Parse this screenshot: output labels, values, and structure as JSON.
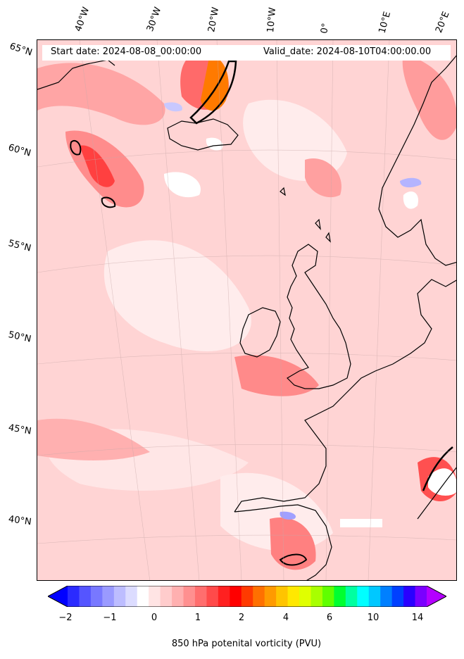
{
  "header": {
    "start_date": "Start date: 2024-08-08_00:00:00",
    "valid_date": "Valid_date: 2024-08-10T04:00:00.00"
  },
  "axes": {
    "lon_labels": [
      "40°W",
      "30°W",
      "20°W",
      "10°W",
      "0°",
      "10°E",
      "20°E"
    ],
    "lat_labels": [
      "65°N",
      "60°N",
      "55°N",
      "50°N",
      "45°N",
      "40°N"
    ]
  },
  "colorbar": {
    "label": "850 hPa potenital vorticity (PVU)",
    "tick_labels": [
      "−2",
      "−1",
      "0",
      "1",
      "2",
      "4",
      "6",
      "10",
      "14"
    ],
    "colors": [
      "#0000ff",
      "#2b2bff",
      "#5555ff",
      "#7878ff",
      "#9a9aff",
      "#bdbdff",
      "#dcdcff",
      "#ffffff",
      "#ffe4e4",
      "#ffcccc",
      "#ffb0b0",
      "#ff9090",
      "#ff6e6e",
      "#ff4a4a",
      "#ff2020",
      "#ff0000",
      "#ff3a00",
      "#ff7000",
      "#ff9a00",
      "#ffc400",
      "#ffe800",
      "#e0ff00",
      "#a8ff00",
      "#60ff00",
      "#00ff30",
      "#00ffa0",
      "#00ffff",
      "#00c8ff",
      "#0080ff",
      "#0040ff",
      "#2a00ff",
      "#7a00ff",
      "#b400ff"
    ]
  },
  "colors": {
    "background_field": "#ffd4d4",
    "coastline": "#000000"
  }
}
